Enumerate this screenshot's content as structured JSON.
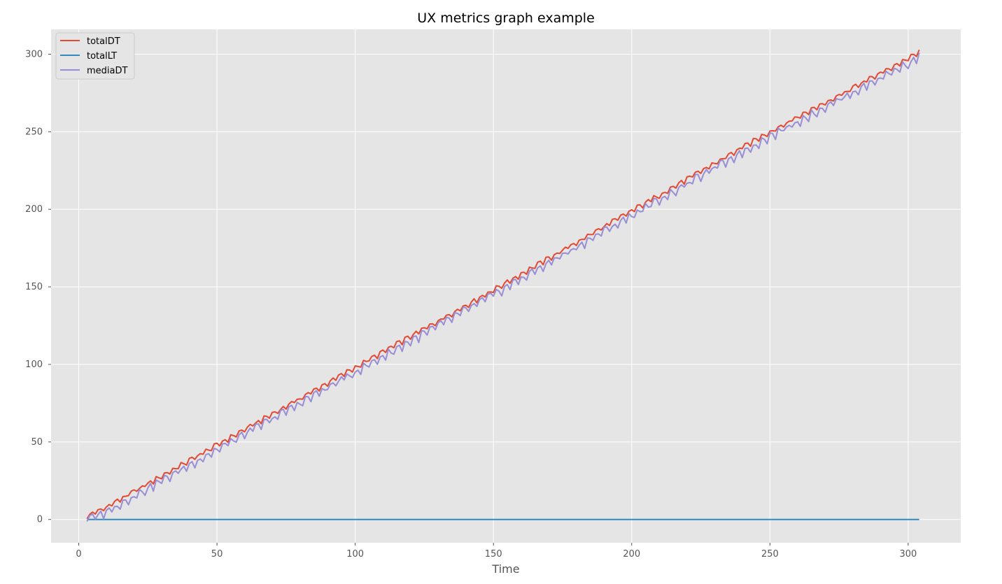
{
  "chart_data": {
    "type": "line",
    "title": "UX metrics graph example",
    "xlabel": "Time",
    "ylabel": "",
    "xlim": [
      -10,
      319
    ],
    "ylim": [
      -15,
      316
    ],
    "xticks": [
      0,
      50,
      100,
      150,
      200,
      250,
      300
    ],
    "yticks": [
      0,
      50,
      100,
      150,
      200,
      250,
      300
    ],
    "grid": true,
    "legend_position": "top-left",
    "background": "#e5e5e5",
    "series": [
      {
        "name": "totalDT",
        "color": "#e24a33",
        "x_start": 3,
        "x_end": 304,
        "trend": [
          [
            3,
            2
          ],
          [
            10,
            8
          ],
          [
            50,
            48
          ],
          [
            100,
            98
          ],
          [
            150,
            148
          ],
          [
            200,
            199
          ],
          [
            250,
            250
          ],
          [
            303,
            300
          ],
          [
            304,
            302
          ]
        ],
        "wobble": 1.5
      },
      {
        "name": "totalLT",
        "color": "#348abd",
        "x_start": 3,
        "x_end": 304,
        "trend": [
          [
            3,
            0
          ],
          [
            304,
            0
          ]
        ],
        "wobble": 0
      },
      {
        "name": "mediaDT",
        "color": "#988ed5",
        "x_start": 3,
        "x_end": 304,
        "trend": [
          [
            3,
            0
          ],
          [
            10,
            5
          ],
          [
            50,
            45
          ],
          [
            100,
            95
          ],
          [
            150,
            145
          ],
          [
            200,
            196
          ],
          [
            250,
            247
          ],
          [
            303,
            297
          ],
          [
            304,
            299
          ]
        ],
        "wobble": 2.5
      }
    ]
  }
}
